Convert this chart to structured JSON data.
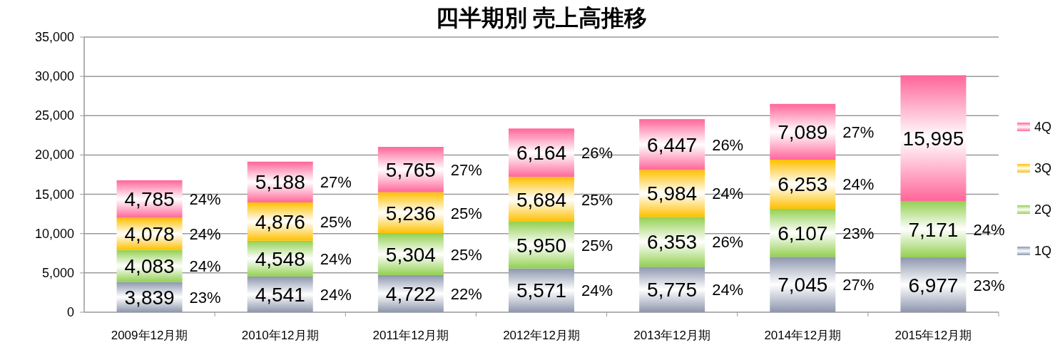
{
  "chart_data": {
    "type": "bar",
    "title": "四半期別 売上高推移",
    "stacked": true,
    "grid": "y",
    "legend": "right",
    "categories": [
      "2009年12月期",
      "2010年12月期",
      "2011年12月期",
      "2012年12月期",
      "2013年12月期",
      "2014年12月期",
      "2015年12月期"
    ],
    "ylim": [
      0,
      35000
    ],
    "yticks": [
      0,
      {
        "value": 5000,
        "label": "5,000"
      },
      {
        "value": 10000,
        "label": "10,000"
      },
      {
        "value": 15000,
        "label": "15,000"
      },
      {
        "value": 20000,
        "label": "20,000"
      },
      {
        "value": 25000,
        "label": "25,000"
      },
      {
        "value": 30000,
        "label": "30,000"
      },
      {
        "value": 35000,
        "label": "35,000"
      }
    ],
    "series": [
      {
        "name": "1Q",
        "color": "#8c96ad",
        "values": [
          3839,
          4541,
          4722,
          5571,
          5775,
          7045,
          6977
        ],
        "value_labels": [
          "3,839",
          "4,541",
          "4,722",
          "5,571",
          "5,775",
          "7,045",
          "6,977"
        ]
      },
      {
        "name": "2Q",
        "color": "#92d050",
        "values": [
          4083,
          4548,
          5304,
          5950,
          6353,
          6107,
          7171
        ],
        "value_labels": [
          "4,083",
          "4,548",
          "5,304",
          "5,950",
          "6,353",
          "6,107",
          "7,171"
        ]
      },
      {
        "name": "3Q",
        "color": "#ffc000",
        "values": [
          4078,
          4876,
          5236,
          5684,
          5984,
          6253,
          null
        ],
        "value_labels": [
          "4,078",
          "4,876",
          "5,236",
          "5,684",
          "5,984",
          "6,253",
          null
        ]
      },
      {
        "name": "4Q",
        "color": "#ff6699",
        "values": [
          4785,
          5188,
          5765,
          6164,
          6447,
          7089,
          15995
        ],
        "value_labels": [
          "4,785",
          "5,188",
          "5,765",
          "6,164",
          "6,447",
          "7,089",
          "15,995"
        ]
      }
    ],
    "annotations": [
      {
        "text": "24%",
        "x": "2009年12月期",
        "y": 16785
      },
      {
        "text": "24%",
        "x": "2009年12月期",
        "y": 12000
      },
      {
        "text": "24%",
        "x": "2009年12月期",
        "y": 7922
      },
      {
        "text": "23%",
        "x": "2009年12月期",
        "y": 3839
      },
      {
        "text": "27%",
        "x": "2010年12月期",
        "y": 19153
      },
      {
        "text": "25%",
        "x": "2010年12月期",
        "y": 13965
      },
      {
        "text": "24%",
        "x": "2010年12月期",
        "y": 9089
      },
      {
        "text": "24%",
        "x": "2010年12月期",
        "y": 4541
      },
      {
        "text": "27%",
        "x": "2011年12月期",
        "y": 21027
      },
      {
        "text": "25%",
        "x": "2011年12月期",
        "y": 15262
      },
      {
        "text": "25%",
        "x": "2011年12月期",
        "y": 10026
      },
      {
        "text": "22%",
        "x": "2011年12月期",
        "y": 4722
      },
      {
        "text": "26%",
        "x": "2012年12月期",
        "y": 23369
      },
      {
        "text": "25%",
        "x": "2012年12月期",
        "y": 17205
      },
      {
        "text": "25%",
        "x": "2012年12月期",
        "y": 11521
      },
      {
        "text": "24%",
        "x": "2012年12月期",
        "y": 5571
      },
      {
        "text": "26%",
        "x": "2013年12月期",
        "y": 24559
      },
      {
        "text": "24%",
        "x": "2013年12月期",
        "y": 18112
      },
      {
        "text": "26%",
        "x": "2013年12月期",
        "y": 12128
      },
      {
        "text": "24%",
        "x": "2013年12月期",
        "y": 5775
      },
      {
        "text": "27%",
        "x": "2014年12月期",
        "y": 26494
      },
      {
        "text": "24%",
        "x": "2014年12月期",
        "y": 19405
      },
      {
        "text": "23%",
        "x": "2014年12月期",
        "y": 13152
      },
      {
        "text": "27%",
        "x": "2014年12月期",
        "y": 7045
      },
      {
        "text": "24%",
        "x": "2015年12月期",
        "y": 14148
      },
      {
        "text": "23%",
        "x": "2015年12月期",
        "y": 6977
      }
    ]
  }
}
